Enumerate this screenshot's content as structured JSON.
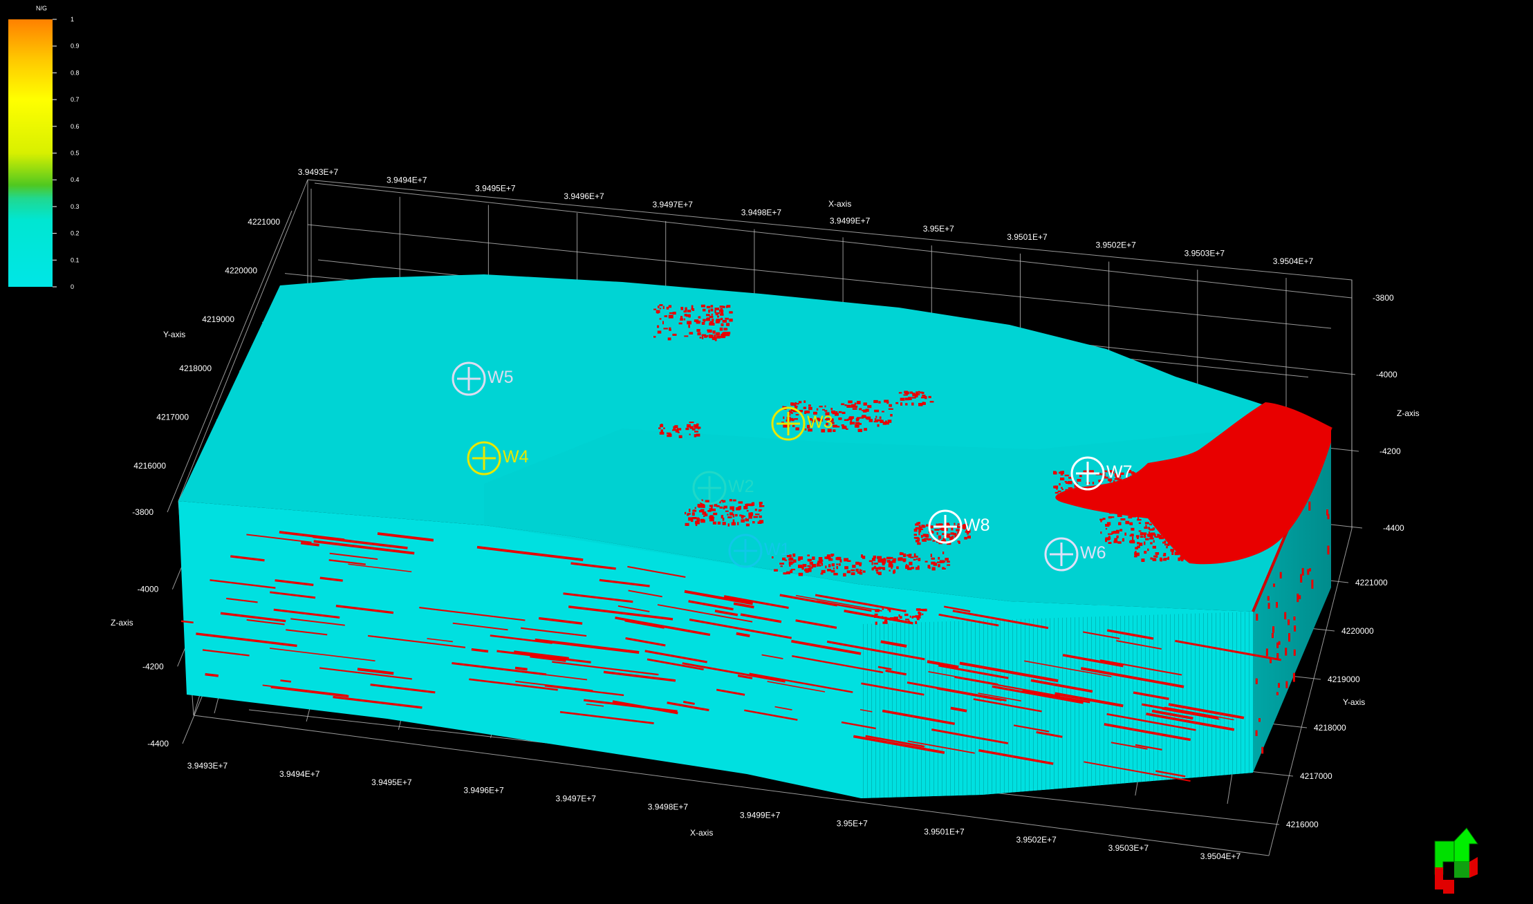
{
  "colorbar": {
    "title": "N/G",
    "labels": [
      "1",
      "0.9",
      "0.8",
      "0.7",
      "0.6",
      "0.5",
      "0.4",
      "0.3",
      "0.2",
      "0.1",
      "0"
    ]
  },
  "x_axis": {
    "title": "X-axis",
    "top_ticks": [
      "3.9493E+7",
      "3.9494E+7",
      "3.9495E+7",
      "3.9496E+7",
      "3.9497E+7",
      "3.9498E+7",
      "3.9499E+7",
      "3.95E+7",
      "3.9501E+7",
      "3.9502E+7",
      "3.9503E+7",
      "3.9504E+7"
    ],
    "bottom_ticks": [
      "3.9493E+7",
      "3.9494E+7",
      "3.9495E+7",
      "3.9496E+7",
      "3.9497E+7",
      "3.9498E+7",
      "3.9499E+7",
      "3.95E+7",
      "3.9501E+7",
      "3.9502E+7",
      "3.9503E+7",
      "3.9504E+7"
    ]
  },
  "y_axis": {
    "title": "Y-axis",
    "left_ticks": [
      "4221000",
      "4220000",
      "4219000",
      "4218000",
      "4217000",
      "4216000"
    ],
    "right_ticks": [
      "4221000",
      "4220000",
      "4219000",
      "4218000",
      "4217000",
      "4216000"
    ]
  },
  "z_axis": {
    "title": "Z-axis",
    "left_ticks": [
      "-3800",
      "-4000",
      "-4200",
      "-4400"
    ],
    "right_ticks": [
      "-3800",
      "-4000",
      "-4200",
      "-4400"
    ]
  },
  "wells": [
    {
      "name": "W5",
      "color": "#dcdcf0"
    },
    {
      "name": "W3",
      "color": "#e8e800"
    },
    {
      "name": "W4",
      "color": "#e8e800"
    },
    {
      "name": "W2",
      "color": "#20d8c8"
    },
    {
      "name": "W7",
      "color": "#ffffff"
    },
    {
      "name": "W8",
      "color": "#ffffff"
    },
    {
      "name": "W1",
      "color": "#10c8e8"
    },
    {
      "name": "W6",
      "color": "#e0e0f8"
    }
  ],
  "colors": {
    "model_top": "#00d4d4",
    "model_front": "#00e2e2",
    "model_side": "#00a0a0",
    "net_sand": "#e80000",
    "grid": "#bfbfbf"
  },
  "orientation_widget": "orientation-arrow-icon"
}
